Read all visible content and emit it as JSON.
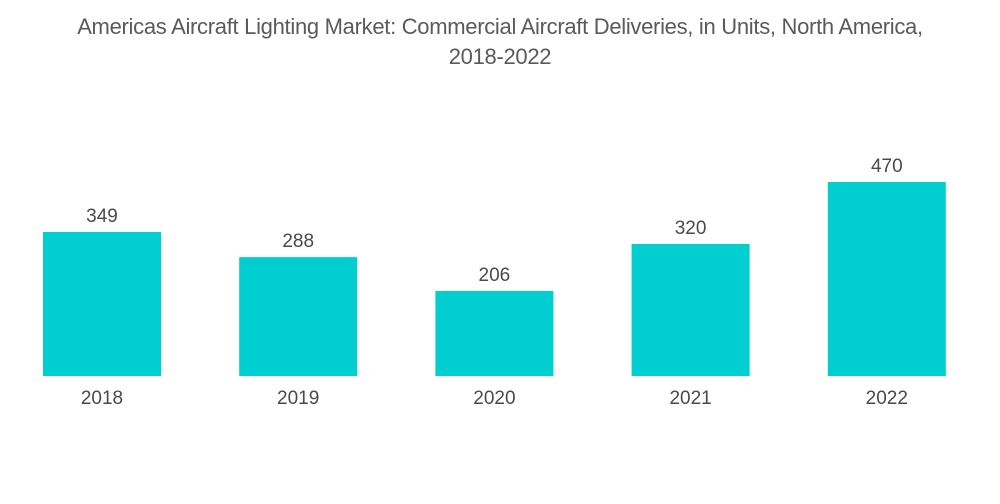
{
  "chart_data": {
    "type": "bar",
    "title": "Americas Aircraft Lighting Market: Commercial Aircraft Deliveries, in Units, North America, 2018-2022",
    "title_lines": [
      "Americas Aircraft Lighting Market: Commercial Aircraft Deliveries, in Units, North America,",
      "2018-2022"
    ],
    "categories": [
      "2018",
      "2019",
      "2020",
      "2021",
      "2022"
    ],
    "values": [
      349,
      288,
      206,
      320,
      470
    ],
    "xlabel": "",
    "ylabel": "",
    "ylim": [
      0,
      470
    ],
    "grid": false,
    "legend": "none",
    "bar_color": "#00CED1",
    "text_color": "#4a4a4a"
  }
}
